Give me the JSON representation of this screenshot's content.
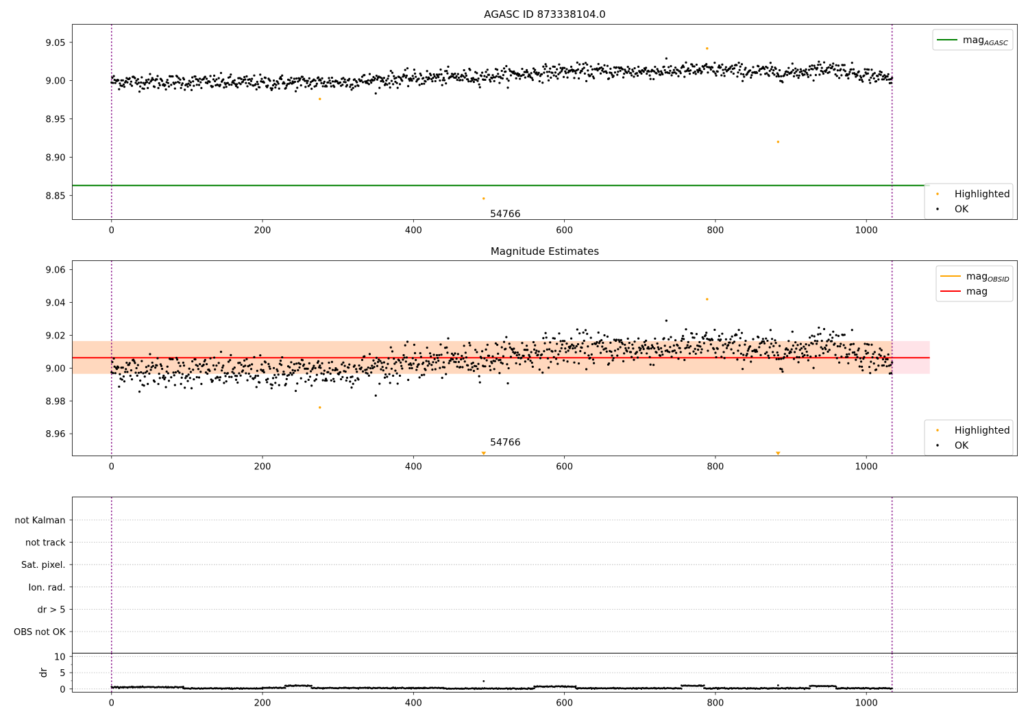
{
  "chart_data": [
    {
      "type": "scatter",
      "title": "AGASC ID 873338104.0",
      "xlim": [
        -52,
        1200
      ],
      "ylim": [
        8.8185,
        9.0735
      ],
      "xticks": [
        0,
        200,
        400,
        600,
        800,
        1000
      ],
      "xtick_labels": [
        "0",
        "200",
        "400",
        "600",
        "800",
        "1000"
      ],
      "yticks": [
        8.85,
        8.9,
        8.95,
        9.0,
        9.05
      ],
      "ytick_labels": [
        "8.85",
        "8.90",
        "8.95",
        "9.00",
        "9.05"
      ],
      "vlines": [
        0,
        1034
      ],
      "mag_agasc": 8.863,
      "legends": {
        "upper": [
          {
            "label": "mag",
            "sub": "AGASC",
            "color": "#008000"
          }
        ],
        "lower": [
          {
            "label": "Highlighted",
            "color": "#ffa500"
          },
          {
            "label": "OK",
            "color": "#000000"
          }
        ]
      },
      "highlighted": [
        {
          "x": 276,
          "y": 8.976
        },
        {
          "x": 493,
          "y": 8.846
        },
        {
          "x": 789,
          "y": 9.042
        },
        {
          "x": 883,
          "y": 8.92
        }
      ],
      "annotation": {
        "x": 496,
        "y": 8.826,
        "text": "54766"
      },
      "ok_trend": {
        "x": [
          0,
          100,
          200,
          300,
          400,
          500,
          600,
          700,
          800,
          900,
          950,
          1000,
          1034
        ],
        "y": [
          8.999,
          8.998,
          8.997,
          8.998,
          9.003,
          9.006,
          9.012,
          9.012,
          9.014,
          9.01,
          9.017,
          9.008,
          9.002
        ]
      },
      "ok_scatter": 0.009
    },
    {
      "type": "scatter",
      "title": "Magnitude Estimates",
      "xlim": [
        -52,
        1200
      ],
      "ylim": [
        8.9465,
        9.0655
      ],
      "xticks": [
        0,
        200,
        400,
        600,
        800,
        1000
      ],
      "xtick_labels": [
        "0",
        "200",
        "400",
        "600",
        "800",
        "1000"
      ],
      "yticks": [
        8.96,
        8.98,
        9.0,
        9.02,
        9.04,
        9.06
      ],
      "ytick_labels": [
        "8.96",
        "8.98",
        "9.00",
        "9.02",
        "9.04",
        "9.06"
      ],
      "vlines": [
        0,
        1034
      ],
      "mag": 9.0063,
      "mag_band": [
        8.9965,
        9.0165
      ],
      "mag_obsid_band": [
        8.9965,
        9.0165
      ],
      "band_xmax": 1084,
      "legends": {
        "upper": [
          {
            "label": "mag",
            "sub": "OBSID",
            "color": "#ffa500"
          },
          {
            "label": "mag",
            "sub": "",
            "color": "#ff0000"
          }
        ],
        "lower": [
          {
            "label": "Highlighted",
            "color": "#ffa500"
          },
          {
            "label": "OK",
            "color": "#000000"
          }
        ]
      },
      "highlighted": [
        {
          "x": 276,
          "y": 8.976
        },
        {
          "x": 789,
          "y": 9.042
        }
      ],
      "offscale_markers": [
        {
          "x": 493
        },
        {
          "x": 883
        }
      ],
      "annotation": {
        "x": 496,
        "y": 8.9495,
        "text": "54766"
      },
      "ok_trend": {
        "x": [
          0,
          100,
          200,
          300,
          400,
          500,
          600,
          700,
          800,
          900,
          950,
          1000,
          1034
        ],
        "y": [
          8.999,
          8.998,
          8.997,
          8.998,
          9.003,
          9.006,
          9.012,
          9.012,
          9.014,
          9.01,
          9.017,
          9.008,
          9.002
        ]
      },
      "ok_scatter": 0.009
    },
    {
      "type": "table",
      "xlim": [
        -52,
        1200
      ],
      "flag_labels": [
        "not Kalman",
        "not track",
        "Sat. pixel.",
        "Ion. rad.",
        "dr > 5",
        "OBS not OK"
      ],
      "vlines": [
        0,
        1034
      ]
    },
    {
      "type": "line",
      "ylabel": "dr",
      "xlim": [
        -52,
        1200
      ],
      "ylim": [
        -1,
        11
      ],
      "yticks": [
        0,
        5,
        10
      ],
      "ytick_labels": [
        "0",
        "5",
        "10"
      ],
      "xticks": [
        0,
        200,
        400,
        600,
        800,
        1000
      ],
      "xtick_labels": [
        "0",
        "200",
        "400",
        "600",
        "800",
        "1000"
      ],
      "vlines": [
        0,
        1034
      ],
      "segments": [
        {
          "x": [
            0,
            95
          ],
          "y": 0.55
        },
        {
          "x": 95,
          "y2": 0.2
        },
        {
          "x": [
            95,
            200
          ],
          "y": 0.15
        },
        {
          "x": [
            200,
            230
          ],
          "y": 0.35
        },
        {
          "x": [
            230,
            265
          ],
          "y": 1.0
        },
        {
          "x": [
            265,
            440
          ],
          "y": 0.3
        },
        {
          "x": [
            440,
            560
          ],
          "y": 0.1
        },
        {
          "x": [
            560,
            615
          ],
          "y": 0.75
        },
        {
          "x": [
            615,
            755
          ],
          "y": 0.2
        },
        {
          "x": [
            755,
            785
          ],
          "y": 1.0
        },
        {
          "x": [
            785,
            925
          ],
          "y": 0.2
        },
        {
          "x": [
            925,
            960
          ],
          "y": 0.9
        },
        {
          "x": [
            960,
            1034
          ],
          "y": 0.2
        }
      ],
      "outliers": [
        {
          "x": 493,
          "y": 2.4
        },
        {
          "x": 883,
          "y": 1.1
        }
      ]
    }
  ]
}
